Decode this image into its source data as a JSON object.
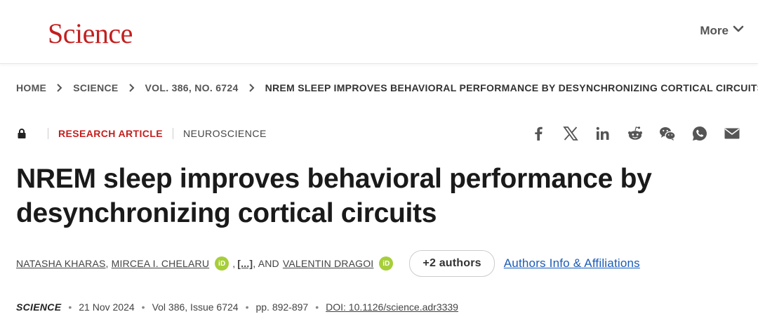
{
  "colors": {
    "brand": "#c41e1e",
    "link": "#1a5bb7",
    "orcid": "#a6ce39",
    "icon": "#555555"
  },
  "header": {
    "logo": "Science",
    "more_label": "More"
  },
  "breadcrumb": [
    "HOME",
    "SCIENCE",
    "VOL. 386, NO. 6724",
    "NREM SLEEP IMPROVES BEHAVIORAL PERFORMANCE BY DESYNCHRONIZING CORTICAL CIRCUITS"
  ],
  "article": {
    "access_icon": "lock-icon",
    "type": "RESEARCH ARTICLE",
    "subject": "NEUROSCIENCE",
    "share_icons": [
      "facebook-icon",
      "x-icon",
      "linkedin-icon",
      "reddit-icon",
      "wechat-icon",
      "whatsapp-icon",
      "email-icon"
    ],
    "title": "NREM sleep improves behavioral performance by desynchronizing cortical circuits",
    "authors": {
      "first": "NATASHA KHARAS",
      "second": "MIRCEA I. CHELARU",
      "comma1": ",",
      "comma2": ",",
      "ellipsis": "[...]",
      "and": ", AND",
      "last": "VALENTIN DRAGOI",
      "orcid_label": "iD",
      "more_button": "+2 authors",
      "affiliations_link": "Authors Info & Affiliations"
    },
    "publication": {
      "journal": "SCIENCE",
      "separator": "•",
      "date": "21 Nov 2024",
      "volume": "Vol 386, Issue 6724",
      "pages": "pp. 892-897",
      "doi": "DOI: 10.1126/science.adr3339"
    }
  }
}
